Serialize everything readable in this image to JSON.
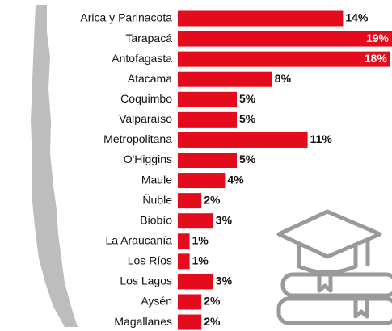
{
  "chart_data": {
    "type": "bar",
    "orientation": "horizontal",
    "color": "#e30b1c",
    "categories": [
      "Arica y Parinacota",
      "Tarapacá",
      "Antofagasta",
      "Atacama",
      "Coquimbo",
      "Valparaíso",
      "Metropolitana",
      "O'Higgins",
      "Maule",
      "Ñuble",
      "Biobío",
      "La Araucanía",
      "Los Ríos",
      "Los Lagos",
      "Aysén",
      "Magallanes"
    ],
    "values": [
      14,
      19,
      18,
      8,
      5,
      5,
      11,
      5,
      4,
      2,
      3,
      1,
      1,
      3,
      2,
      2
    ],
    "value_labels": [
      "14%",
      "19%",
      "18%",
      "8%",
      "5%",
      "5%",
      "11%",
      "5%",
      "4%",
      "2%",
      "3%",
      "1%",
      "1%",
      "3%",
      "2%",
      "2%"
    ]
  }
}
